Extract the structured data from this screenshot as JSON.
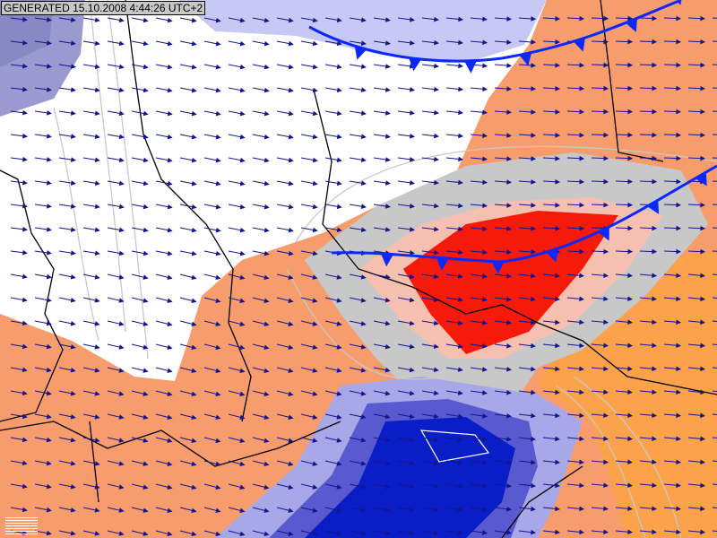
{
  "stamp": "GENERATED 15.10.2008 4:44:26 UTC+2",
  "colors": {
    "warm": "#f79c6c",
    "warm_light": "#fba24a",
    "neutral": "#ffffff",
    "cool_light": "#c8c8f4",
    "cool_dark": "#9a9ad0",
    "hot_core": "#f51a0a",
    "cold_core": "#0a1ec8",
    "contour_gray": "#c8c8c8",
    "front": "#0a28ff",
    "wind_arrow": "#14148c"
  },
  "fronts": [
    {
      "type": "cold-front",
      "location": "north"
    },
    {
      "type": "cold-front",
      "location": "center"
    }
  ],
  "icons": [
    "wind-arrow-icon",
    "legend-icon"
  ]
}
